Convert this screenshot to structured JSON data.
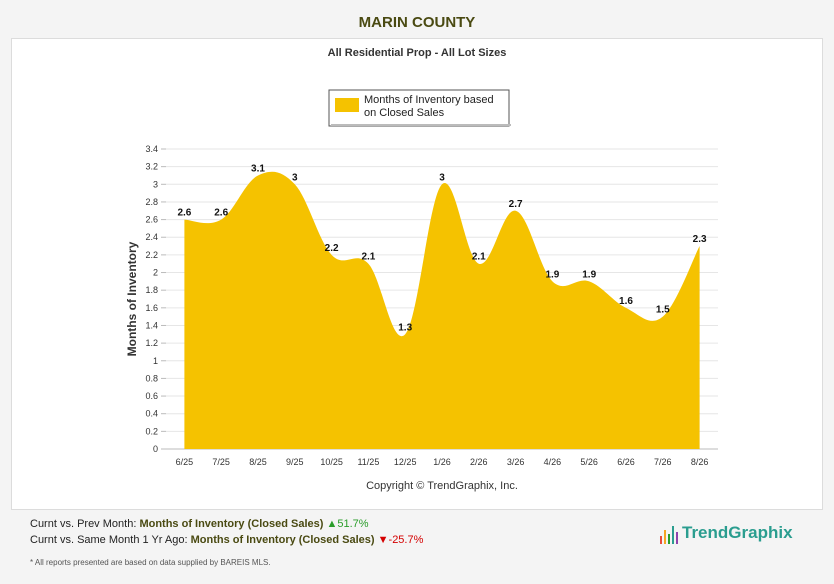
{
  "header": {
    "title": "MARIN COUNTY"
  },
  "chart_data": {
    "type": "area",
    "title": "All Residential Prop - All Lot Sizes",
    "ylabel": "Months of Inventory",
    "xlabel": "",
    "ylim": [
      0,
      3.4
    ],
    "yticks": [
      "0",
      "0.2",
      "0.4",
      "0.6",
      "0.8",
      "1",
      "1.2",
      "1.4",
      "1.6",
      "1.8",
      "2",
      "2.2",
      "2.4",
      "2.6",
      "2.8",
      "3",
      "3.2",
      "3.4"
    ],
    "categories": [
      "6/25",
      "7/25",
      "8/25",
      "9/25",
      "10/25",
      "11/25",
      "12/25",
      "1/26",
      "2/26",
      "3/26",
      "4/26",
      "5/26",
      "6/26",
      "7/26",
      "8/26"
    ],
    "series": [
      {
        "name": "Months of Inventory based on Closed Sales",
        "values": [
          2.6,
          2.6,
          3.1,
          3,
          2.2,
          2.1,
          1.3,
          3,
          2.1,
          2.7,
          1.9,
          1.9,
          1.6,
          1.5,
          2.3
        ]
      }
    ],
    "data_labels": [
      "2.6",
      "2.6",
      "3.1",
      "3",
      "2.2",
      "2.1",
      "1.3",
      "3",
      "2.1",
      "2.7",
      "1.9",
      "1.9",
      "1.6",
      "1.5",
      "2.3"
    ],
    "legend": {
      "placement": "top-center",
      "line1": "Months of Inventory based",
      "line2": "on Closed Sales"
    },
    "color": "#f5c200",
    "grid": true,
    "copyright": "Copyright © TrendGraphix, Inc."
  },
  "footer": {
    "line1": {
      "prefix": "Curnt vs. Prev Month:",
      "metric": "Months of Inventory (Closed Sales)",
      "arrow": "▲",
      "change": "51.7%"
    },
    "line2": {
      "prefix": "Curnt vs. Same Month 1 Yr Ago:",
      "metric": "Months of Inventory (Closed Sales)",
      "arrow": "▼",
      "change": "-25.7%"
    },
    "disclaimer": "* All reports presented are based on data supplied by BAREIS MLS."
  },
  "logo": {
    "text": "TrendGraphix",
    "icon": "bar-chart-logo-icon"
  }
}
